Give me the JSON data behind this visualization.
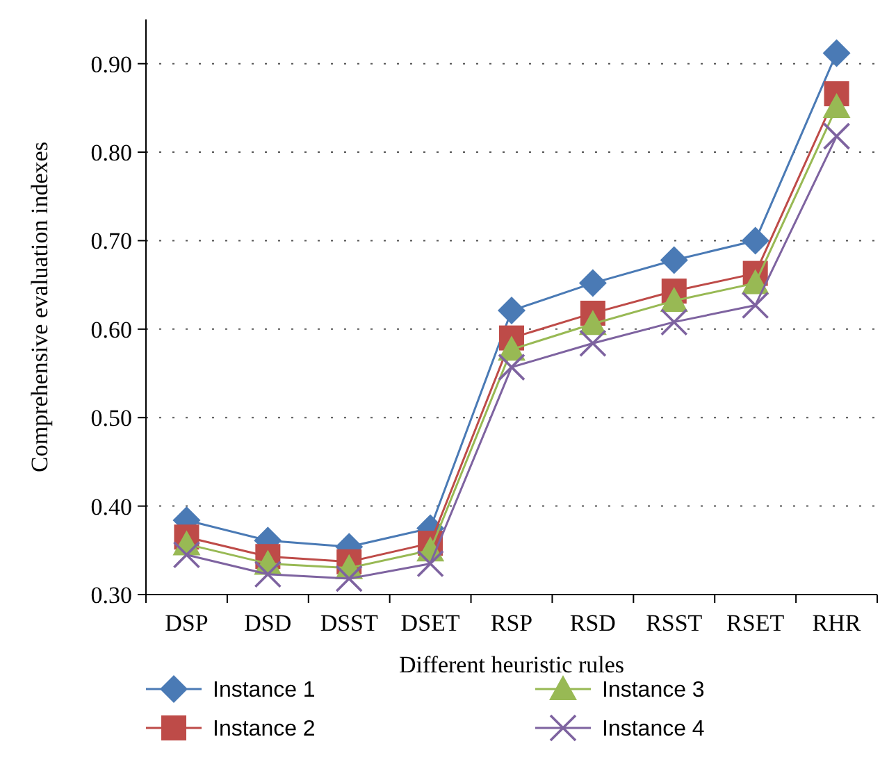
{
  "chart_data": {
    "type": "line",
    "xlabel": "Different heuristic rules",
    "ylabel": "Comprehensive evaluation indexes",
    "categories": [
      "DSP",
      "DSD",
      "DSST",
      "DSET",
      "RSP",
      "RSD",
      "RSST",
      "RSET",
      "RHR"
    ],
    "ylim": [
      0.3,
      0.95
    ],
    "yticks": [
      {
        "value": 0.3,
        "label": "0.30"
      },
      {
        "value": 0.4,
        "label": "0.40"
      },
      {
        "value": 0.5,
        "label": "0.50"
      },
      {
        "value": 0.6,
        "label": "0.60"
      },
      {
        "value": 0.7,
        "label": "0.70"
      },
      {
        "value": 0.8,
        "label": "0.80"
      },
      {
        "value": 0.9,
        "label": "0.90"
      }
    ],
    "grid": "y",
    "legend": "bottom",
    "series": [
      {
        "name": "Instance 1",
        "color": "#4a7ab5",
        "marker": "diamond",
        "values": [
          0.384,
          0.361,
          0.354,
          0.375,
          0.621,
          0.652,
          0.678,
          0.7,
          0.912
        ]
      },
      {
        "name": "Instance 2",
        "color": "#be4b48",
        "marker": "square",
        "values": [
          0.365,
          0.343,
          0.337,
          0.358,
          0.59,
          0.618,
          0.643,
          0.663,
          0.866
        ]
      },
      {
        "name": "Instance 3",
        "color": "#98b954",
        "marker": "triangle",
        "values": [
          0.357,
          0.335,
          0.33,
          0.35,
          0.577,
          0.606,
          0.632,
          0.652,
          0.851
        ]
      },
      {
        "name": "Instance 4",
        "color": "#7e63a0",
        "marker": "cross",
        "values": [
          0.345,
          0.323,
          0.318,
          0.335,
          0.557,
          0.584,
          0.608,
          0.627,
          0.818
        ]
      }
    ]
  }
}
